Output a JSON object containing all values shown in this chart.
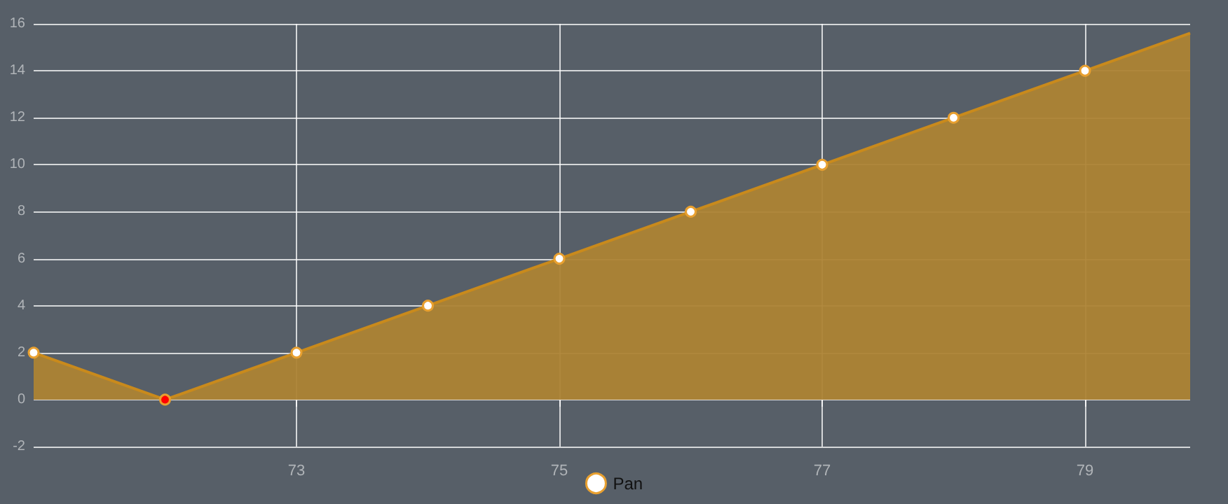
{
  "chart_data": {
    "type": "area",
    "x": [
      71,
      72,
      73,
      74,
      75,
      76,
      77,
      78,
      79,
      79.8
    ],
    "series": [
      {
        "name": "Pan",
        "color": "#ad8334",
        "values": [
          2,
          0,
          2,
          4,
          6,
          8,
          10,
          12,
          14,
          15.6
        ],
        "colors": [
          "#ffffff",
          "#ff0000",
          "#ffffff",
          "#ffffff",
          "#ffffff",
          "#ffffff",
          "#ffffff",
          "#ffffff",
          "#ffffff",
          null
        ]
      }
    ],
    "xlim": [
      71,
      79.8
    ],
    "xticks": [
      73,
      75,
      77,
      79
    ],
    "ylim": [
      -2,
      16
    ],
    "yticks": [
      -2,
      0,
      2,
      4,
      6,
      8,
      10,
      12,
      14,
      16
    ],
    "grid": true,
    "legend": "bottom",
    "marker": "circle"
  }
}
